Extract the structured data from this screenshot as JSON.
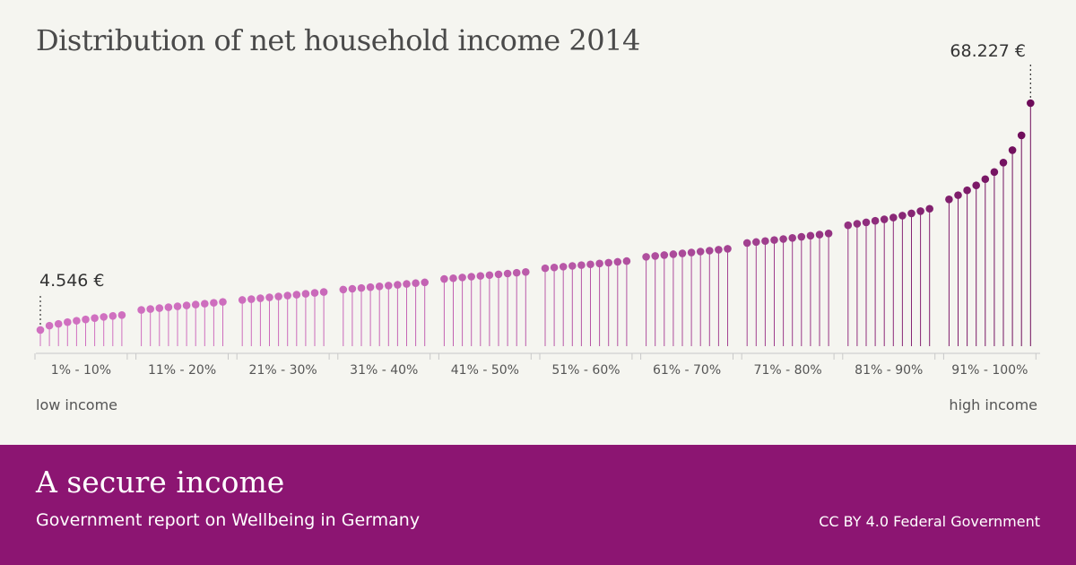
{
  "chart_data": {
    "type": "lollipop",
    "title": "Distribution of net household income 2014",
    "unit": "€",
    "min_label": "4.546 €",
    "max_label": "68.227 €",
    "axis_left_label": "low income",
    "axis_right_label": "high income",
    "groups": [
      "1% - 10%",
      "11% - 20%",
      "21% - 30%",
      "31% - 40%",
      "41% - 50%",
      "51% - 60%",
      "61% - 70%",
      "71% - 80%",
      "81% - 90%",
      "91% - 100%"
    ],
    "values": [
      4546,
      5760,
      6260,
      6760,
      7140,
      7510,
      7890,
      8210,
      8490,
      8740,
      10180,
      10430,
      10680,
      10930,
      11180,
      11430,
      11680,
      11930,
      12180,
      12430,
      12970,
      13210,
      13460,
      13710,
      13960,
      14210,
      14460,
      14710,
      14960,
      15210,
      15890,
      16110,
      16330,
      16570,
      16790,
      17010,
      17230,
      17470,
      17690,
      17910,
      18870,
      19070,
      19290,
      19510,
      19730,
      19950,
      20170,
      20390,
      20610,
      20830,
      21870,
      22090,
      22310,
      22530,
      22750,
      22970,
      23210,
      23430,
      23670,
      23890,
      25080,
      25320,
      25570,
      25810,
      26050,
      26300,
      26560,
      26810,
      27070,
      27330,
      28960,
      29240,
      29520,
      29800,
      30080,
      30390,
      30700,
      31010,
      31320,
      31650,
      33940,
      34360,
      34760,
      35190,
      35610,
      36110,
      36650,
      37270,
      37910,
      38580,
      41220,
      42390,
      43750,
      45140,
      46890,
      48890,
      51540,
      55030,
      59170,
      68227
    ],
    "ylim": [
      0,
      72000
    ]
  },
  "colors": {
    "background": "#f5f5f0",
    "low": "#d070c0",
    "high": "#6e0c5a",
    "footer": "#8c1572"
  },
  "footer": {
    "title": "A secure income",
    "subtitle": "Government report on Wellbeing in Germany",
    "credit": "CC BY 4.0 Federal Government"
  }
}
